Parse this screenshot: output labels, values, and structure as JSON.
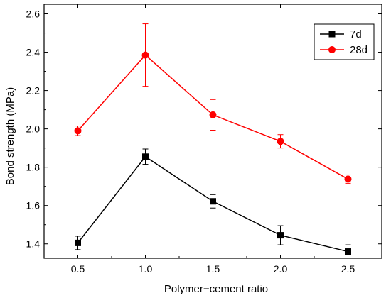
{
  "chart_data": {
    "type": "line",
    "xlabel": "Polymer−cement ratio",
    "ylabel": "Bond strength (MPa)",
    "x": [
      0.5,
      1.0,
      1.5,
      2.0,
      2.5
    ],
    "xticks": [
      "0.5",
      "1.0",
      "1.5",
      "2.0",
      "2.5"
    ],
    "yticks": [
      "1.4",
      "1.6",
      "1.8",
      "2.0",
      "2.2",
      "2.4",
      "2.6"
    ],
    "xlim": [
      0.25,
      2.75
    ],
    "ylim": [
      1.325,
      2.65
    ],
    "legend_position": "top-right",
    "series": [
      {
        "name": "7d",
        "color": "#000000",
        "marker": "square",
        "values": [
          1.405,
          1.855,
          1.622,
          1.445,
          1.36
        ],
        "errors": [
          0.035,
          0.04,
          0.035,
          0.05,
          0.035
        ]
      },
      {
        "name": "28d",
        "color": "#ff0000",
        "marker": "circle",
        "values": [
          1.99,
          2.385,
          2.073,
          1.935,
          1.738
        ],
        "errors": [
          0.025,
          0.163,
          0.08,
          0.035,
          0.022
        ]
      }
    ]
  }
}
